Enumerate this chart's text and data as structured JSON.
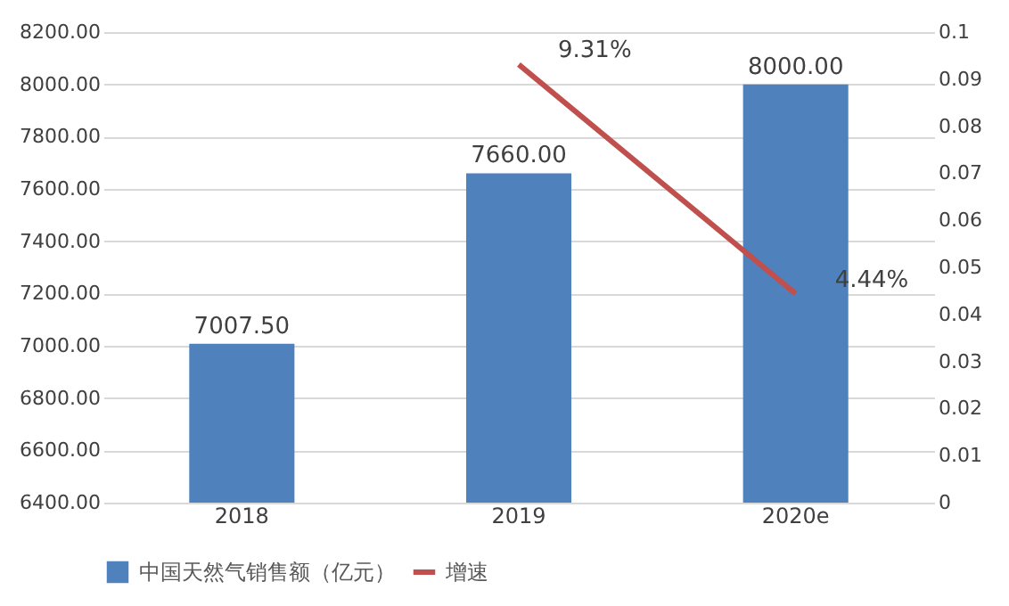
{
  "chart_data": {
    "type": "bar",
    "categories": [
      "2018",
      "2019",
      "2020e"
    ],
    "series": [
      {
        "name": "中国天然气销售额（亿元）",
        "color": "#4f81bd",
        "values": [
          7007.5,
          7660,
          8000
        ],
        "value_labels": [
          "7007.50",
          "7660.00",
          "8000.00"
        ]
      },
      {
        "name": "增速",
        "type": "line",
        "axis": "y2",
        "color": "#c0504d",
        "values": [
          null,
          0.0931,
          0.0444
        ],
        "value_labels": [
          null,
          "9.31%",
          "4.44%"
        ]
      }
    ],
    "ylim": [
      6400,
      8200
    ],
    "yticks": [
      {
        "value": 6400,
        "label": "6400.00"
      },
      {
        "value": 6600,
        "label": "6600.00"
      },
      {
        "value": 6800,
        "label": "6800.00"
      },
      {
        "value": 7000,
        "label": "7000.00"
      },
      {
        "value": 7200,
        "label": "7200.00"
      },
      {
        "value": 7400,
        "label": "7400.00"
      },
      {
        "value": 7600,
        "label": "7600.00"
      },
      {
        "value": 7800,
        "label": "7800.00"
      },
      {
        "value": 8000,
        "label": "8000.00"
      },
      {
        "value": 8200,
        "label": "8200.00"
      }
    ],
    "y2lim": [
      0,
      0.1
    ],
    "y2ticks": [
      0,
      0.01,
      0.02,
      0.03,
      0.04,
      0.05,
      0.06,
      0.07,
      0.08,
      0.09,
      0.1
    ],
    "grid": "y",
    "legend": "bottom"
  }
}
